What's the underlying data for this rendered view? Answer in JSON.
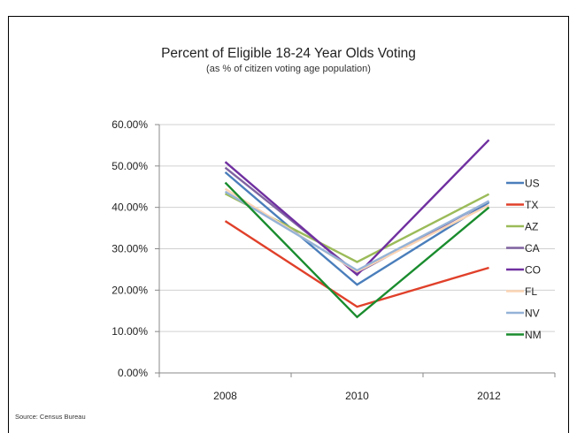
{
  "chart_data": {
    "type": "line",
    "title": "Percent of Eligible 18-24 Year Olds Voting",
    "subtitle": "(as % of citizen voting age population)",
    "source": "Source: Census Bureau",
    "x": [
      "2008",
      "2010",
      "2012"
    ],
    "ylim": [
      0,
      60
    ],
    "yticks": [
      "0.00%",
      "10.00%",
      "20.00%",
      "30.00%",
      "40.00%",
      "50.00%",
      "60.00%"
    ],
    "grid": true,
    "legend": "right",
    "series": [
      {
        "name": "US",
        "color": "#4a7ebb",
        "values": [
          48.5,
          21.3,
          41.2
        ]
      },
      {
        "name": "TX",
        "color": "#e0402a",
        "values": [
          36.7,
          16.0,
          25.4
        ]
      },
      {
        "name": "AZ",
        "color": "#9bbb59",
        "values": [
          43.3,
          26.8,
          43.2
        ]
      },
      {
        "name": "CA",
        "color": "#8064a2",
        "values": [
          49.6,
          24.2,
          41.5
        ]
      },
      {
        "name": "CO",
        "color": "#7030a0",
        "values": [
          51.0,
          23.7,
          56.3
        ]
      },
      {
        "name": "FL",
        "color": "#fcd5b4",
        "values": [
          44.5,
          24.5,
          40.5
        ]
      },
      {
        "name": "NV",
        "color": "#95b3d7",
        "values": [
          43.8,
          24.8,
          41.5
        ]
      },
      {
        "name": "NM",
        "color": "#1a8c2e",
        "values": [
          46.0,
          13.5,
          40.0
        ]
      }
    ]
  }
}
